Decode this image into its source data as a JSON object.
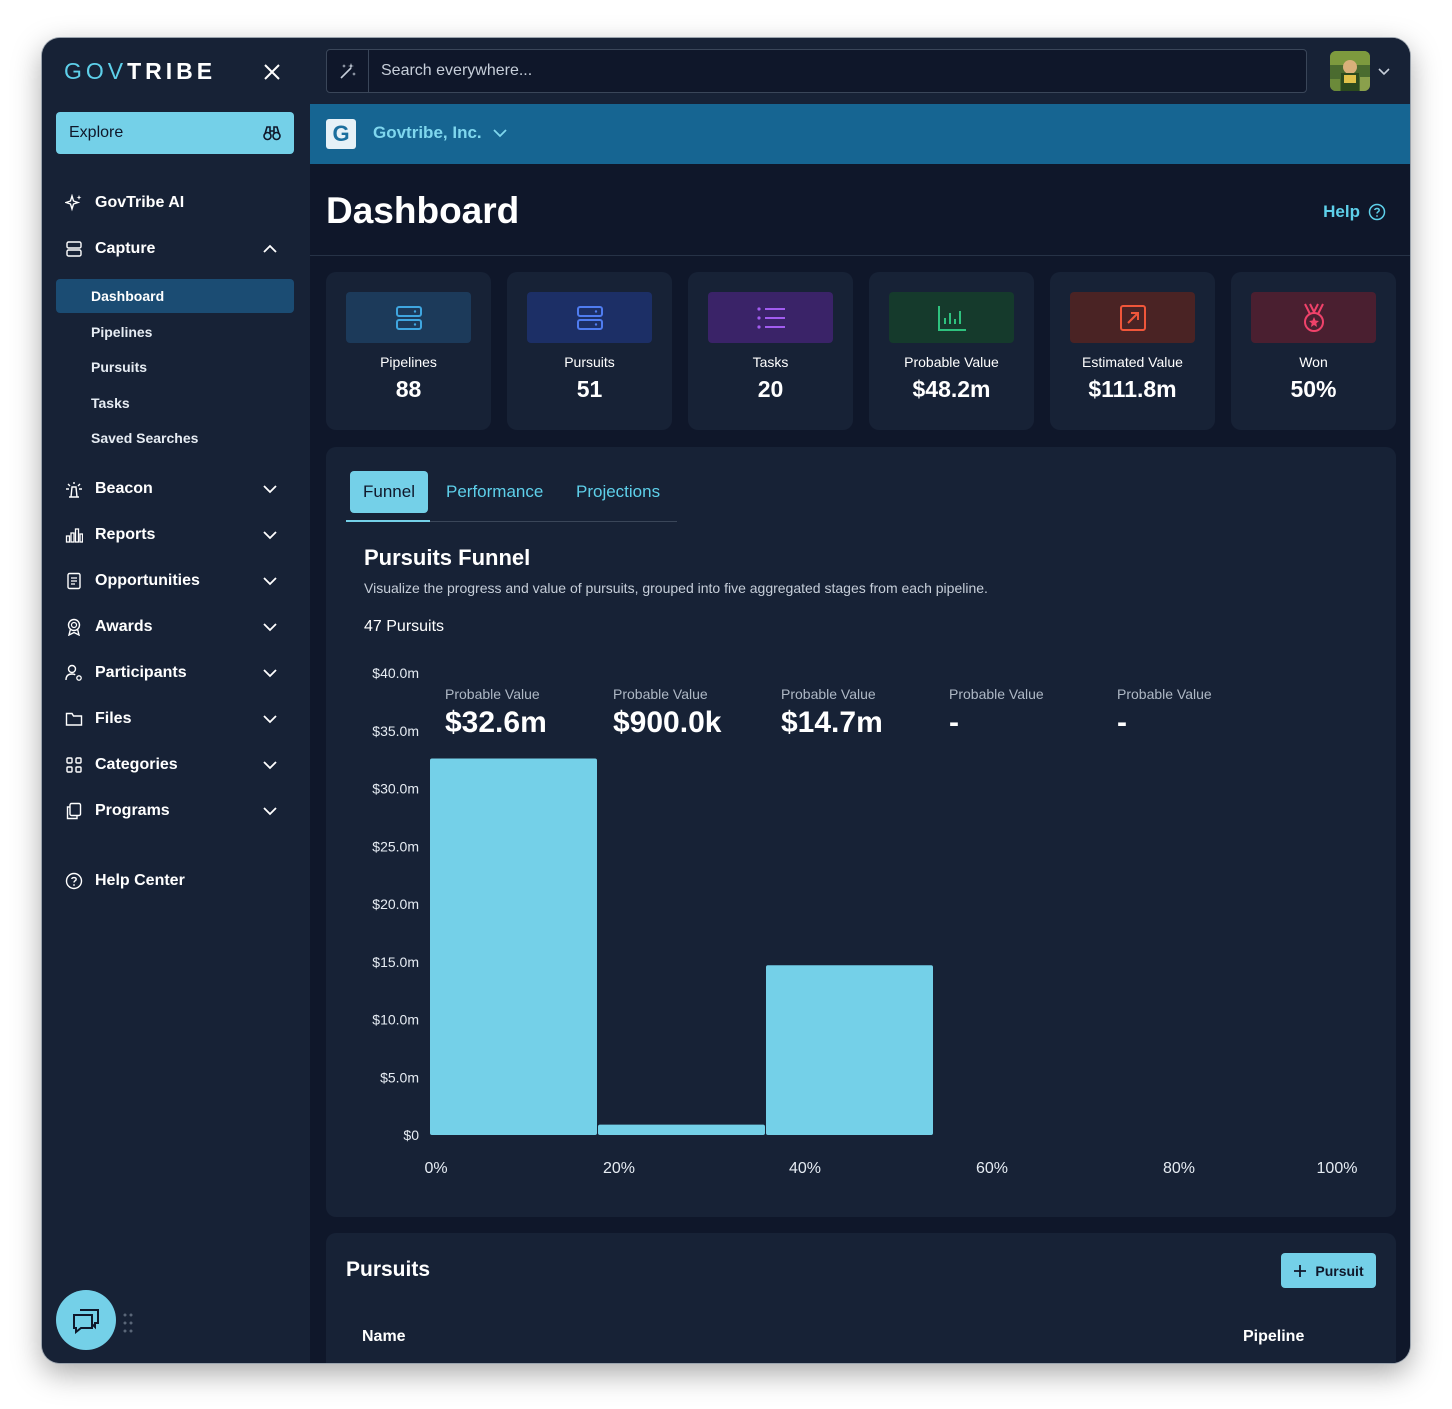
{
  "brand": {
    "gov": "GOV",
    "tribe": "TRIBE"
  },
  "sidebar": {
    "explore_label": "Explore",
    "items": [
      {
        "label": "GovTribe AI",
        "icon": "sparkles-icon"
      },
      {
        "label": "Capture",
        "icon": "server-icon"
      },
      {
        "label": "Beacon",
        "icon": "beacon-icon"
      },
      {
        "label": "Reports",
        "icon": "bar-chart-icon"
      },
      {
        "label": "Opportunities",
        "icon": "document-icon"
      },
      {
        "label": "Awards",
        "icon": "award-icon"
      },
      {
        "label": "Participants",
        "icon": "users-gear-icon"
      },
      {
        "label": "Files",
        "icon": "folder-icon"
      },
      {
        "label": "Categories",
        "icon": "grid-icon"
      },
      {
        "label": "Programs",
        "icon": "copy-icon"
      },
      {
        "label": "Help Center",
        "icon": "question-circle-icon"
      }
    ],
    "capture_sub": [
      "Dashboard",
      "Pipelines",
      "Pursuits",
      "Tasks",
      "Saved Searches"
    ]
  },
  "search": {
    "placeholder": "Search everywhere..."
  },
  "org": {
    "name": "Govtribe, Inc.",
    "logo_letter": "G"
  },
  "header": {
    "title": "Dashboard",
    "help_label": "Help"
  },
  "stats": [
    {
      "label": "Pipelines",
      "value": "88",
      "color": "#1c3a5a",
      "icon_color": "#3fa6e0",
      "icon": "server-icon"
    },
    {
      "label": "Pursuits",
      "value": "51",
      "color": "#1c2f66",
      "icon_color": "#4f7cf0",
      "icon": "server-icon"
    },
    {
      "label": "Tasks",
      "value": "20",
      "color": "#3a2368",
      "icon_color": "#a25cf0",
      "icon": "list-icon"
    },
    {
      "label": "Probable Value",
      "value": "$48.2m",
      "color": "#153a2c",
      "icon_color": "#2ec27e",
      "icon": "chart-icon"
    },
    {
      "label": "Estimated Value",
      "value": "$111.8m",
      "color": "#4a2324",
      "icon_color": "#f0563a",
      "icon": "external-link-icon"
    },
    {
      "label": "Won",
      "value": "50%",
      "color": "#4a1f30",
      "icon_color": "#f0426a",
      "icon": "medal-icon"
    }
  ],
  "tabs": [
    "Funnel",
    "Performance",
    "Projections"
  ],
  "funnel": {
    "title": "Pursuits Funnel",
    "description": "Visualize the progress and value of pursuits, grouped into five aggregated stages from each pipeline.",
    "count": "47 Pursuits"
  },
  "pursuits": {
    "title": "Pursuits",
    "add_label": "Pursuit",
    "columns": [
      "Name",
      "Pipeline"
    ]
  },
  "chart_data": {
    "type": "bar",
    "stage_label": "Probable Value",
    "stage_values": [
      "$32.6m",
      "$900.0k",
      "$14.7m",
      "-",
      "-"
    ],
    "values": [
      32.6,
      0.9,
      14.7,
      0,
      0
    ],
    "bar_color": "#74d0e8",
    "y_unit": "$m",
    "ylim": [
      0,
      40
    ],
    "y_ticks": [
      "$0",
      "$5.0m",
      "$10.0m",
      "$15.0m",
      "$20.0m",
      "$25.0m",
      "$30.0m",
      "$35.0m",
      "$40.0m"
    ],
    "x_ticks": [
      "0%",
      "20%",
      "40%",
      "60%",
      "80%",
      "100%"
    ],
    "grid": false
  }
}
